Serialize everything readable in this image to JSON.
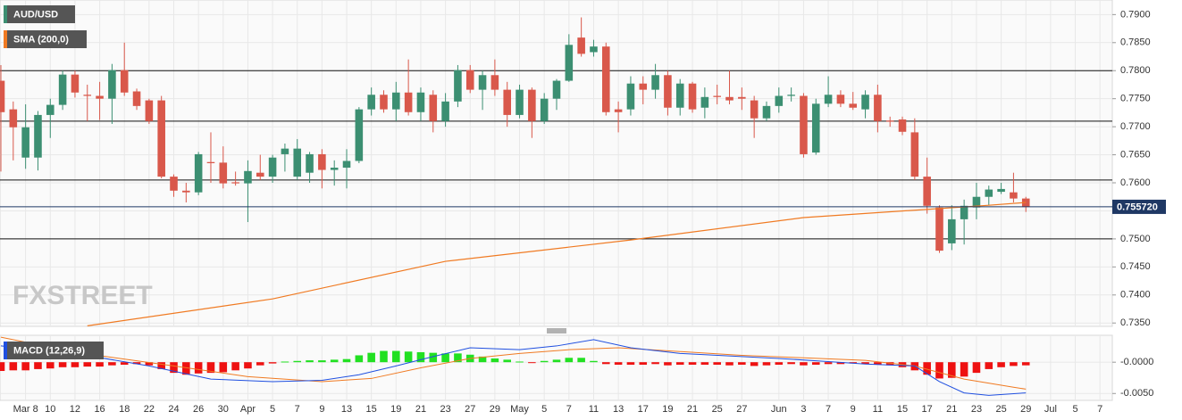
{
  "chart_data": [
    {
      "type": "candlestick",
      "series": [
        {
          "name": "AUD/USD",
          "color": "#3c8f72",
          "down_color": "#d9584b",
          "open": [
            0.7782,
            0.7731,
            0.7645,
            0.7645,
            0.7721,
            0.7739,
            0.7793,
            0.7757,
            0.7755,
            0.775,
            0.7801,
            0.7763,
            0.7747,
            0.7747,
            0.7611,
            0.7586,
            0.7583,
            0.7637,
            0.7636,
            0.7601,
            0.7599,
            0.7618,
            0.7611,
            0.7651,
            0.7611,
            0.7618,
            0.7651,
            0.7623,
            0.7627,
            0.7639,
            0.7731,
            0.7757,
            0.7731,
            0.7761,
            0.7726,
            0.7757,
            0.771,
            0.7745,
            0.7801,
            0.7766,
            0.7792,
            0.7766,
            0.7721,
            0.7766,
            0.771,
            0.775,
            0.7782,
            0.7859,
            0.7833,
            0.7843,
            0.7731,
            0.7731,
            0.7777,
            0.7766,
            0.7792,
            0.7734,
            0.7777,
            0.7734,
            0.7755,
            0.7753,
            0.7753,
            0.7747,
            0.7715,
            0.7737,
            0.7755,
            0.7755,
            0.7654,
            0.7741,
            0.7757,
            0.7741,
            0.7731,
            0.7757,
            0.7711,
            0.7713,
            0.769,
            0.7611,
            0.7556,
            0.7492,
            0.7535,
            0.7556,
            0.7575,
            0.7584,
            0.7583,
            0.7572
          ],
          "high": [
            0.781,
            0.7745,
            0.774,
            0.7728,
            0.775,
            0.78,
            0.78,
            0.7775,
            0.778,
            0.7812,
            0.785,
            0.7768,
            0.775,
            0.7755,
            0.7615,
            0.76,
            0.7655,
            0.769,
            0.7665,
            0.762,
            0.764,
            0.765,
            0.765,
            0.767,
            0.7678,
            0.7655,
            0.766,
            0.764,
            0.766,
            0.7735,
            0.777,
            0.7765,
            0.778,
            0.782,
            0.777,
            0.7765,
            0.776,
            0.781,
            0.781,
            0.78,
            0.782,
            0.778,
            0.7775,
            0.777,
            0.776,
            0.7785,
            0.7865,
            0.7895,
            0.7855,
            0.785,
            0.7745,
            0.779,
            0.779,
            0.7812,
            0.78,
            0.7785,
            0.778,
            0.777,
            0.7775,
            0.78,
            0.777,
            0.7755,
            0.7745,
            0.777,
            0.777,
            0.776,
            0.775,
            0.779,
            0.7765,
            0.7762,
            0.7765,
            0.7775,
            0.7718,
            0.7718,
            0.7715,
            0.7645,
            0.756,
            0.756,
            0.757,
            0.76,
            0.7595,
            0.76,
            0.7618,
            0.7575
          ],
          "low": [
            0.762,
            0.764,
            0.7625,
            0.7622,
            0.768,
            0.773,
            0.7752,
            0.771,
            0.7712,
            0.7705,
            0.7755,
            0.773,
            0.7705,
            0.7608,
            0.7575,
            0.7565,
            0.7578,
            0.76,
            0.759,
            0.7595,
            0.753,
            0.7605,
            0.76,
            0.762,
            0.7605,
            0.76,
            0.759,
            0.7595,
            0.759,
            0.7635,
            0.772,
            0.7725,
            0.771,
            0.772,
            0.771,
            0.769,
            0.77,
            0.7735,
            0.776,
            0.773,
            0.7755,
            0.77,
            0.7715,
            0.768,
            0.7705,
            0.773,
            0.778,
            0.7825,
            0.7825,
            0.772,
            0.769,
            0.772,
            0.774,
            0.775,
            0.772,
            0.772,
            0.7725,
            0.7715,
            0.774,
            0.774,
            0.773,
            0.768,
            0.771,
            0.7725,
            0.7745,
            0.7645,
            0.765,
            0.7735,
            0.7735,
            0.773,
            0.7715,
            0.769,
            0.77,
            0.7685,
            0.7605,
            0.7545,
            0.7475,
            0.748,
            0.749,
            0.7535,
            0.756,
            0.758,
            0.7565,
            0.7548
          ],
          "close": [
            0.7726,
            0.7699,
            0.7699,
            0.7721,
            0.7739,
            0.7793,
            0.7761,
            0.7755,
            0.775,
            0.7801,
            0.7761,
            0.7737,
            0.771,
            0.7611,
            0.7586,
            0.7583,
            0.7651,
            0.7635,
            0.7599,
            0.7599,
            0.7621,
            0.7611,
            0.7645,
            0.7661,
            0.7661,
            0.7651,
            0.7623,
            0.7627,
            0.7639,
            0.7731,
            0.7757,
            0.7731,
            0.7761,
            0.7726,
            0.7761,
            0.771,
            0.7745,
            0.7801,
            0.7766,
            0.7792,
            0.7766,
            0.7721,
            0.7766,
            0.771,
            0.775,
            0.7782,
            0.7846,
            0.783,
            0.7843,
            0.7726,
            0.7726,
            0.7777,
            0.7766,
            0.7792,
            0.7734,
            0.7777,
            0.7731,
            0.7753,
            0.7753,
            0.7747,
            0.775,
            0.7715,
            0.7737,
            0.7755,
            0.7757,
            0.7651,
            0.7741,
            0.7757,
            0.7741,
            0.7734,
            0.7757,
            0.771,
            0.7709,
            0.7691,
            0.7611,
            0.7559,
            0.7479,
            0.7535,
            0.7559,
            0.7575,
            0.7588,
            0.7589,
            0.7572,
            0.7557
          ]
        },
        {
          "name": "SMA (200,0)",
          "color": "#f07a22",
          "x": [
            7,
            22,
            36,
            51,
            65,
            80,
            83
          ],
          "values": [
            0.7345,
            0.7393,
            0.746,
            0.7498,
            0.7538,
            0.756,
            0.7565
          ]
        }
      ],
      "levels": [
        0.78,
        0.771,
        0.7605,
        0.75
      ],
      "last_price": {
        "value": 0.75572,
        "label": "0.755720"
      },
      "watermark": "FXSTREET",
      "grid": true,
      "xlim": [
        0,
        90
      ],
      "ylim": [
        0.7344,
        0.7926
      ],
      "yticks": [
        {
          "value": 0.79,
          "label": "0.7900"
        },
        {
          "value": 0.785,
          "label": "0.7850"
        },
        {
          "value": 0.78,
          "label": "0.7800"
        },
        {
          "value": 0.775,
          "label": "0.7750"
        },
        {
          "value": 0.77,
          "label": "0.7700"
        },
        {
          "value": 0.765,
          "label": "0.7650"
        },
        {
          "value": 0.76,
          "label": "0.7600"
        },
        {
          "value": 0.755,
          "label": "0.7550"
        },
        {
          "value": 0.75,
          "label": "0.7500"
        },
        {
          "value": 0.745,
          "label": "0.7450"
        },
        {
          "value": 0.74,
          "label": "0.7400"
        },
        {
          "value": 0.735,
          "label": "0.7350"
        }
      ],
      "xticks": [
        {
          "value": 2,
          "label": "Mar 8"
        },
        {
          "value": 4,
          "label": "10"
        },
        {
          "value": 6,
          "label": "12"
        },
        {
          "value": 8,
          "label": "16"
        },
        {
          "value": 10,
          "label": "18"
        },
        {
          "value": 12,
          "label": "22"
        },
        {
          "value": 14,
          "label": "24"
        },
        {
          "value": 16,
          "label": "26"
        },
        {
          "value": 18,
          "label": "30"
        },
        {
          "value": 20,
          "label": "Apr"
        },
        {
          "value": 22,
          "label": "5"
        },
        {
          "value": 24,
          "label": "7"
        },
        {
          "value": 26,
          "label": "9"
        },
        {
          "value": 28,
          "label": "13"
        },
        {
          "value": 30,
          "label": "15"
        },
        {
          "value": 32,
          "label": "19"
        },
        {
          "value": 34,
          "label": "21"
        },
        {
          "value": 36,
          "label": "23"
        },
        {
          "value": 38,
          "label": "27"
        },
        {
          "value": 40,
          "label": "29"
        },
        {
          "value": 42,
          "label": "May"
        },
        {
          "value": 44,
          "label": "5"
        },
        {
          "value": 46,
          "label": "7"
        },
        {
          "value": 48,
          "label": "11"
        },
        {
          "value": 50,
          "label": "13"
        },
        {
          "value": 52,
          "label": "17"
        },
        {
          "value": 54,
          "label": "19"
        },
        {
          "value": 56,
          "label": "21"
        },
        {
          "value": 58,
          "label": "25"
        },
        {
          "value": 60,
          "label": "27"
        },
        {
          "value": 63,
          "label": "Jun"
        },
        {
          "value": 65,
          "label": "3"
        },
        {
          "value": 67,
          "label": "7"
        },
        {
          "value": 69,
          "label": "9"
        },
        {
          "value": 71,
          "label": "11"
        },
        {
          "value": 73,
          "label": "15"
        },
        {
          "value": 75,
          "label": "17"
        },
        {
          "value": 77,
          "label": "21"
        },
        {
          "value": 79,
          "label": "23"
        },
        {
          "value": 81,
          "label": "25"
        },
        {
          "value": 83,
          "label": "29"
        },
        {
          "value": 85,
          "label": "Jul"
        },
        {
          "value": 87,
          "label": "5"
        },
        {
          "value": 89,
          "label": "7"
        }
      ]
    },
    {
      "type": "macd",
      "title": "MACD (12,26,9)",
      "color": "#1f4fe0",
      "histogram": {
        "up_color": "#22e022",
        "down_color": "#ee1111",
        "values": [
          -0.0014,
          -0.0013,
          -0.0013,
          -0.0011,
          -0.001,
          -0.0008,
          -0.0008,
          -0.0007,
          -0.0007,
          -0.0005,
          -0.0004,
          -0.0003,
          -0.0005,
          -0.0011,
          -0.0017,
          -0.002,
          -0.0018,
          -0.0017,
          -0.0016,
          -0.0013,
          -0.001,
          -0.0005,
          -0.0002,
          0.0001,
          0.0002,
          0.0003,
          0.0003,
          0.0004,
          0.0005,
          0.0011,
          0.0015,
          0.0018,
          0.0018,
          0.0017,
          0.0016,
          0.0015,
          0.0014,
          0.0014,
          0.0012,
          0.0009,
          0.0006,
          0.0004,
          0.0001,
          -0.0001,
          0.0002,
          0.0004,
          0.0007,
          0.0007,
          0.0002,
          -0.0003,
          -0.0004,
          -0.0004,
          -0.0004,
          -0.0003,
          -0.0005,
          -0.0004,
          -0.0004,
          -0.0004,
          -0.0004,
          -0.0005,
          -0.0004,
          -0.0006,
          -0.0005,
          -0.0004,
          -0.0003,
          -0.0005,
          -0.0004,
          -0.0003,
          -0.0003,
          -0.0002,
          -0.0003,
          -0.0004,
          -0.0005,
          -0.0008,
          -0.0013,
          -0.002,
          -0.0026,
          -0.0025,
          -0.0023,
          -0.0017,
          -0.0011,
          -0.0008,
          -0.0006,
          -0.0005
        ]
      },
      "macd_line": {
        "color": "#1f4fe0",
        "x": [
          0,
          6,
          12,
          17,
          22,
          26,
          29,
          32,
          35,
          38,
          42,
          45,
          48,
          51,
          55,
          60,
          63,
          67,
          70,
          74,
          76,
          78,
          80,
          83
        ],
        "values": [
          0.0026,
          0.0014,
          -0.0006,
          -0.0027,
          -0.0031,
          -0.0029,
          -0.002,
          -0.0006,
          0.0009,
          0.0023,
          0.002,
          0.0026,
          0.0036,
          0.0023,
          0.0014,
          0.0009,
          0.0006,
          0.0001,
          -0.0003,
          -0.0006,
          -0.0031,
          -0.0049,
          -0.0053,
          -0.0049
        ]
      },
      "signal_line": {
        "color": "#f07a22",
        "x": [
          0,
          6,
          14,
          20,
          26,
          30,
          34,
          38,
          42,
          46,
          50,
          55,
          60,
          65,
          70,
          74,
          78,
          82,
          83
        ],
        "values": [
          0.004,
          0.0016,
          -0.0006,
          -0.0023,
          -0.0031,
          -0.0026,
          -0.0009,
          0.0006,
          0.0014,
          0.002,
          0.0023,
          0.0017,
          0.0011,
          0.0007,
          0.0003,
          -0.0006,
          -0.0027,
          -0.004,
          -0.0043
        ]
      },
      "xlim": [
        0,
        90
      ],
      "ylim": [
        -0.0061,
        0.0043
      ],
      "yticks": [
        {
          "value": 0,
          "label": "-0.0000"
        },
        {
          "value": -0.005,
          "label": "-0.0050"
        }
      ]
    }
  ]
}
